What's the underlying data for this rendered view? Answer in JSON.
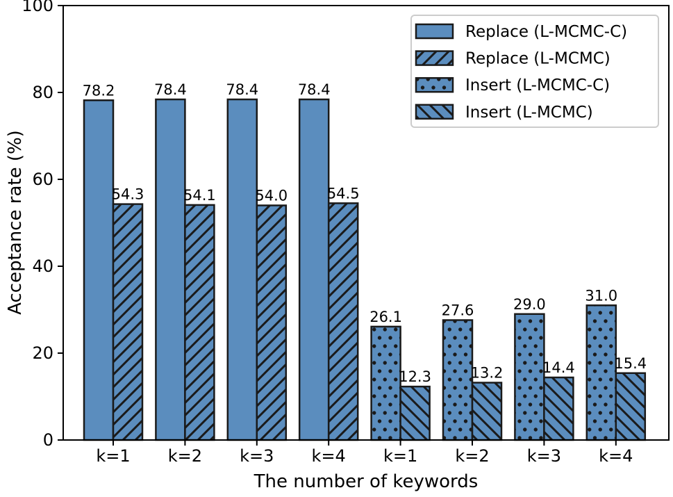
{
  "chart_data": {
    "type": "bar",
    "title": "",
    "xlabel": "The number of keywords",
    "ylabel": "Acceptance rate (%)",
    "ylim": [
      0,
      100
    ],
    "yticks": [
      0,
      20,
      40,
      60,
      80,
      100
    ],
    "grid": false,
    "legend_position": "upper right",
    "bar_color": "#5b8dbe",
    "edge_color": "#1a1a1a",
    "legend_border_color": "#cccccc",
    "legend": [
      {
        "label": "Replace (L-MCMC-C)",
        "pattern": "solid"
      },
      {
        "label": "Replace (L-MCMC)",
        "pattern": "slash"
      },
      {
        "label": "Insert (L-MCMC-C)",
        "pattern": "dots"
      },
      {
        "label": "Insert (L-MCMC)",
        "pattern": "backslash"
      }
    ],
    "groups": [
      {
        "label": "k=1",
        "bars": [
          {
            "legend": 0,
            "value": 78.2
          },
          {
            "legend": 1,
            "value": 54.3
          }
        ]
      },
      {
        "label": "k=2",
        "bars": [
          {
            "legend": 0,
            "value": 78.4
          },
          {
            "legend": 1,
            "value": 54.1
          }
        ]
      },
      {
        "label": "k=3",
        "bars": [
          {
            "legend": 0,
            "value": 78.4
          },
          {
            "legend": 1,
            "value": 54.0
          }
        ]
      },
      {
        "label": "k=4",
        "bars": [
          {
            "legend": 0,
            "value": 78.4
          },
          {
            "legend": 1,
            "value": 54.5
          }
        ]
      },
      {
        "label": "k=1",
        "bars": [
          {
            "legend": 2,
            "value": 26.1
          },
          {
            "legend": 3,
            "value": 12.3
          }
        ]
      },
      {
        "label": "k=2",
        "bars": [
          {
            "legend": 2,
            "value": 27.6
          },
          {
            "legend": 3,
            "value": 13.2
          }
        ]
      },
      {
        "label": "k=3",
        "bars": [
          {
            "legend": 2,
            "value": 29.0
          },
          {
            "legend": 3,
            "value": 14.4
          }
        ]
      },
      {
        "label": "k=4",
        "bars": [
          {
            "legend": 2,
            "value": 31.0
          },
          {
            "legend": 3,
            "value": 15.4
          }
        ]
      }
    ]
  }
}
